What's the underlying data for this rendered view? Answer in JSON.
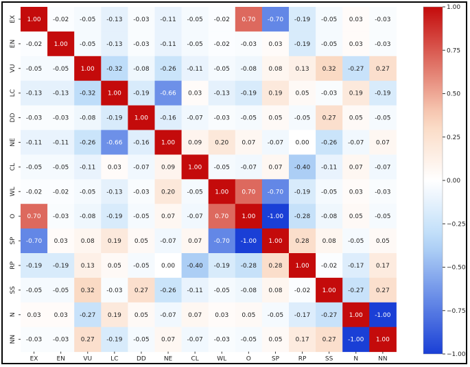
{
  "chart_data": {
    "type": "heatmap",
    "title": "",
    "xlabel": "",
    "ylabel": "",
    "labels": [
      "EX",
      "EN",
      "VU",
      "LC",
      "DD",
      "NE",
      "CL",
      "WL",
      "O",
      "SP",
      "RP",
      "SS",
      "N",
      "NN"
    ],
    "matrix": [
      [
        1.0,
        -0.02,
        -0.05,
        -0.13,
        -0.03,
        -0.11,
        -0.05,
        -0.02,
        0.7,
        -0.7,
        -0.19,
        -0.05,
        0.03,
        -0.03
      ],
      [
        -0.02,
        1.0,
        -0.05,
        -0.13,
        -0.03,
        -0.11,
        -0.05,
        -0.02,
        -0.03,
        0.03,
        -0.19,
        -0.05,
        0.03,
        -0.03
      ],
      [
        -0.05,
        -0.05,
        1.0,
        -0.32,
        -0.08,
        -0.26,
        -0.11,
        -0.05,
        -0.08,
        0.08,
        0.13,
        0.32,
        -0.27,
        0.27
      ],
      [
        -0.13,
        -0.13,
        -0.32,
        1.0,
        -0.19,
        -0.66,
        0.03,
        -0.13,
        -0.19,
        0.19,
        0.05,
        -0.03,
        0.19,
        -0.19
      ],
      [
        -0.03,
        -0.03,
        -0.08,
        -0.19,
        1.0,
        -0.16,
        -0.07,
        -0.03,
        -0.05,
        0.05,
        -0.05,
        0.27,
        0.05,
        -0.05
      ],
      [
        -0.11,
        -0.11,
        -0.26,
        -0.66,
        -0.16,
        1.0,
        0.09,
        0.2,
        0.07,
        -0.07,
        0.0,
        -0.26,
        -0.07,
        0.07
      ],
      [
        -0.05,
        -0.05,
        -0.11,
        0.03,
        -0.07,
        0.09,
        1.0,
        -0.05,
        -0.07,
        0.07,
        -0.4,
        -0.11,
        0.07,
        -0.07
      ],
      [
        -0.02,
        -0.02,
        -0.05,
        -0.13,
        -0.03,
        0.2,
        -0.05,
        1.0,
        0.7,
        -0.7,
        -0.19,
        -0.05,
        0.03,
        -0.03
      ],
      [
        0.7,
        -0.03,
        -0.08,
        -0.19,
        -0.05,
        0.07,
        -0.07,
        0.7,
        1.0,
        -1.0,
        -0.28,
        -0.08,
        0.05,
        -0.05
      ],
      [
        -0.7,
        0.03,
        0.08,
        0.19,
        0.05,
        -0.07,
        0.07,
        -0.7,
        -1.0,
        1.0,
        0.28,
        0.08,
        -0.05,
        0.05
      ],
      [
        -0.19,
        -0.19,
        0.13,
        0.05,
        -0.05,
        0.0,
        -0.4,
        -0.19,
        -0.28,
        0.28,
        1.0,
        -0.02,
        -0.17,
        0.17
      ],
      [
        -0.05,
        -0.05,
        0.32,
        -0.03,
        0.27,
        -0.26,
        -0.11,
        -0.05,
        -0.08,
        0.08,
        -0.02,
        1.0,
        -0.27,
        0.27
      ],
      [
        0.03,
        0.03,
        -0.27,
        0.19,
        0.05,
        -0.07,
        0.07,
        0.03,
        0.05,
        -0.05,
        -0.17,
        -0.27,
        1.0,
        -1.0
      ],
      [
        -0.03,
        -0.03,
        0.27,
        -0.19,
        -0.05,
        0.07,
        -0.07,
        -0.03,
        -0.05,
        0.05,
        0.17,
        0.27,
        -1.0,
        1.0
      ]
    ],
    "colorbar": {
      "min": -1.0,
      "max": 1.0,
      "ticks": [
        "1.00",
        "0.75",
        "0.50",
        "0.25",
        "0.00",
        "−0.25",
        "−0.50",
        "−0.75",
        "−1.00"
      ],
      "tick_values": [
        1.0,
        0.75,
        0.5,
        0.25,
        0.0,
        -0.25,
        -0.5,
        -0.75,
        -1.0
      ],
      "colormap": "coolwarm (red high, blue low)"
    },
    "grid": false,
    "legend": "colorbar-right"
  },
  "colors": {
    "high": "#c40b0b",
    "mid": "#ffffff",
    "low": "#1a3fd6"
  }
}
